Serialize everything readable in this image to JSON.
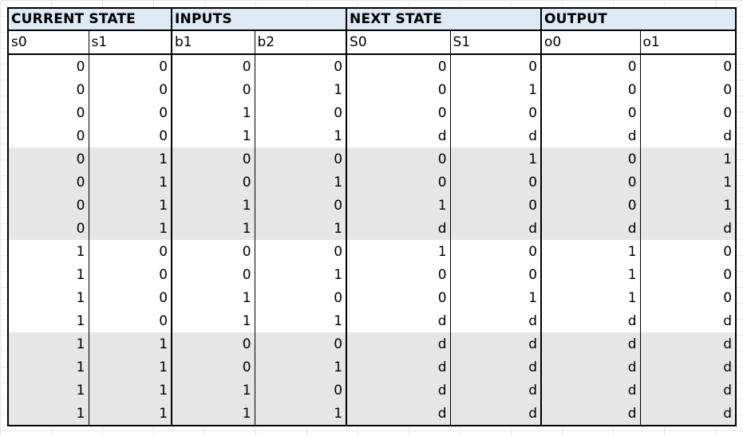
{
  "groups": [
    "CURRENT STATE",
    "INPUTS",
    "NEXT STATE",
    "OUTPUT"
  ],
  "columns": [
    "s0",
    "s1",
    "b1",
    "b2",
    "S0",
    "S1",
    "o0",
    "o1"
  ],
  "rows": [
    [
      "0",
      "0",
      "0",
      "0",
      "0",
      "0",
      "0",
      "0"
    ],
    [
      "0",
      "0",
      "0",
      "1",
      "0",
      "1",
      "0",
      "0"
    ],
    [
      "0",
      "0",
      "1",
      "0",
      "0",
      "0",
      "0",
      "0"
    ],
    [
      "0",
      "0",
      "1",
      "1",
      "d",
      "d",
      "d",
      "d"
    ],
    [
      "0",
      "1",
      "0",
      "0",
      "0",
      "1",
      "0",
      "1"
    ],
    [
      "0",
      "1",
      "0",
      "1",
      "0",
      "0",
      "0",
      "1"
    ],
    [
      "0",
      "1",
      "1",
      "0",
      "1",
      "0",
      "0",
      "1"
    ],
    [
      "0",
      "1",
      "1",
      "1",
      "d",
      "d",
      "d",
      "d"
    ],
    [
      "1",
      "0",
      "0",
      "0",
      "1",
      "0",
      "1",
      "0"
    ],
    [
      "1",
      "0",
      "0",
      "1",
      "0",
      "0",
      "1",
      "0"
    ],
    [
      "1",
      "0",
      "1",
      "0",
      "0",
      "1",
      "1",
      "0"
    ],
    [
      "1",
      "0",
      "1",
      "1",
      "d",
      "d",
      "d",
      "d"
    ],
    [
      "1",
      "1",
      "0",
      "0",
      "d",
      "d",
      "d",
      "d"
    ],
    [
      "1",
      "1",
      "0",
      "1",
      "d",
      "d",
      "d",
      "d"
    ],
    [
      "1",
      "1",
      "1",
      "0",
      "d",
      "d",
      "d",
      "d"
    ],
    [
      "1",
      "1",
      "1",
      "1",
      "d",
      "d",
      "d",
      "d"
    ]
  ],
  "colors": {
    "header_fill": "#dde9f5",
    "shaded_band": "#e6e6e6",
    "border": "#000000"
  }
}
